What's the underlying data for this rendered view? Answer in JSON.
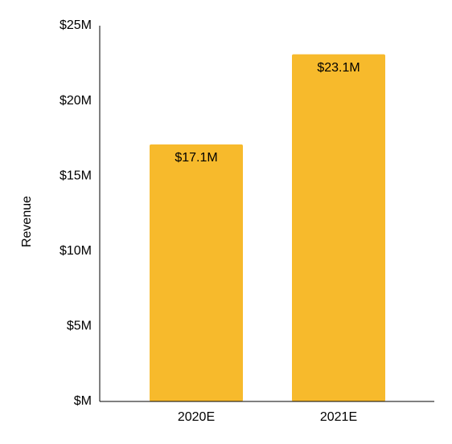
{
  "chart_data": {
    "type": "bar",
    "title": "",
    "xlabel": "",
    "ylabel": "Revenue",
    "categories": [
      "2020E",
      "2021E"
    ],
    "series": [
      {
        "values": [
          17.1,
          23.1
        ],
        "data_labels": [
          "$17.1M",
          "$23.1M"
        ],
        "color": "#F7BA2C"
      }
    ],
    "ylim": [
      0,
      25
    ],
    "yticks": [
      0,
      5,
      10,
      15,
      20,
      25
    ],
    "ytick_labels": [
      "$M",
      "$5M",
      "$10M",
      "$15M",
      "$20M",
      "$25M"
    ],
    "grid": false,
    "legend": "none"
  }
}
